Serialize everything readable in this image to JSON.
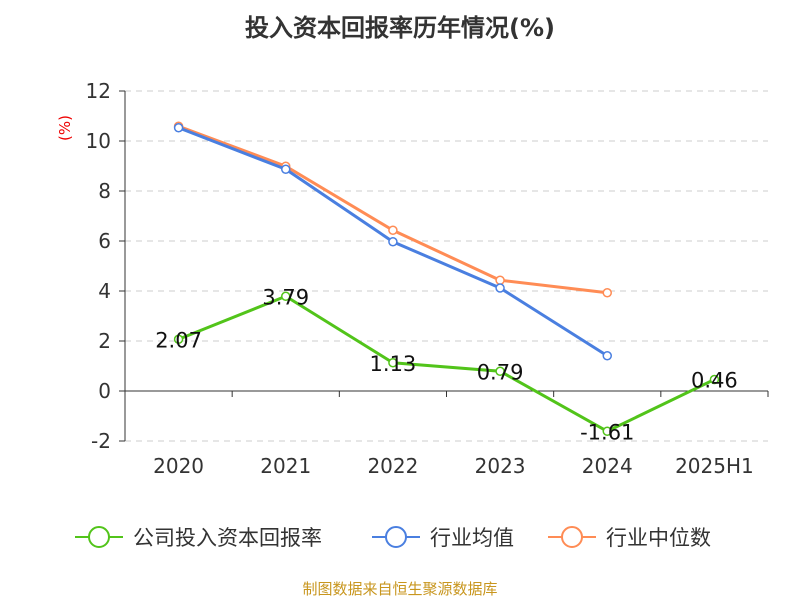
{
  "chart_data": {
    "type": "line",
    "title": "投入资本回报率历年情况(%)",
    "ylabel": "(%)",
    "categories": [
      "2020",
      "2021",
      "2022",
      "2023",
      "2024",
      "2025H1"
    ],
    "ylim": [
      -2,
      12
    ],
    "yticks": [
      "-2",
      "0",
      "2",
      "4",
      "6",
      "8",
      "10",
      "12"
    ],
    "grid": true,
    "legend_position": "bottom",
    "series": [
      {
        "name": "公司投入资本回报率",
        "color": "#52c41a",
        "values": [
          2.07,
          3.79,
          1.13,
          0.79,
          -1.61,
          0.46
        ],
        "labels": [
          "2.07",
          "3.79",
          "1.13",
          "0.79",
          "-1.61",
          "0.46"
        ]
      },
      {
        "name": "行业均值",
        "color": "#4a7fe0",
        "values": [
          10.53,
          8.87,
          5.97,
          4.12,
          1.41,
          null
        ]
      },
      {
        "name": "行业中位数",
        "color": "#ff8c55",
        "values": [
          10.59,
          8.99,
          6.43,
          4.43,
          3.93,
          null
        ]
      }
    ]
  },
  "source": "制图数据来自恒生聚源数据库"
}
